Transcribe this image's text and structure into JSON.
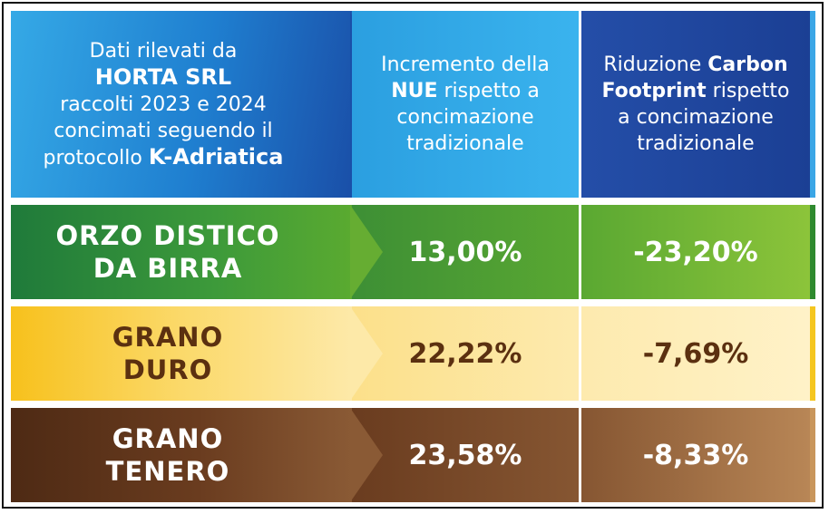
{
  "header": {
    "intro_line1": "Dati rilevati da",
    "company": "HORTA SRL",
    "intro_line3": "raccolti 2023 e 2024",
    "intro_line4": "concimati seguendo il",
    "intro_line5_prefix": "protocollo",
    "protocol": "K-Adriatica",
    "col1": {
      "line1": "Incremento della",
      "bold": "NUE",
      "line2_rest": " rispetto a",
      "line3": "concimazione",
      "line4": "tradizionale"
    },
    "col2": {
      "line1_prefix": "Riduzione ",
      "bold1": "Carbon",
      "bold2": "Footprint",
      "line2_rest": " rispetto",
      "line3": "a concimazione",
      "line4": "tradizionale"
    }
  },
  "rows": [
    {
      "label_line1": "ORZO DISTICO",
      "label_line2": "DA BIRRA",
      "nue_increase": "13,00%",
      "carbon_reduction": "-23,20%"
    },
    {
      "label_line1": "GRANO",
      "label_line2": "DURO",
      "nue_increase": "22,22%",
      "carbon_reduction": "-7,69%"
    },
    {
      "label_line1": "GRANO",
      "label_line2": "TENERO",
      "nue_increase": "23,58%",
      "carbon_reduction": "-8,33%"
    }
  ],
  "colors": {
    "header_blue": "#1f7fd0",
    "green": "#3d9a3a",
    "yellow": "#f7c11c",
    "brown": "#6a3c1f",
    "brown_text": "#5b3010"
  }
}
